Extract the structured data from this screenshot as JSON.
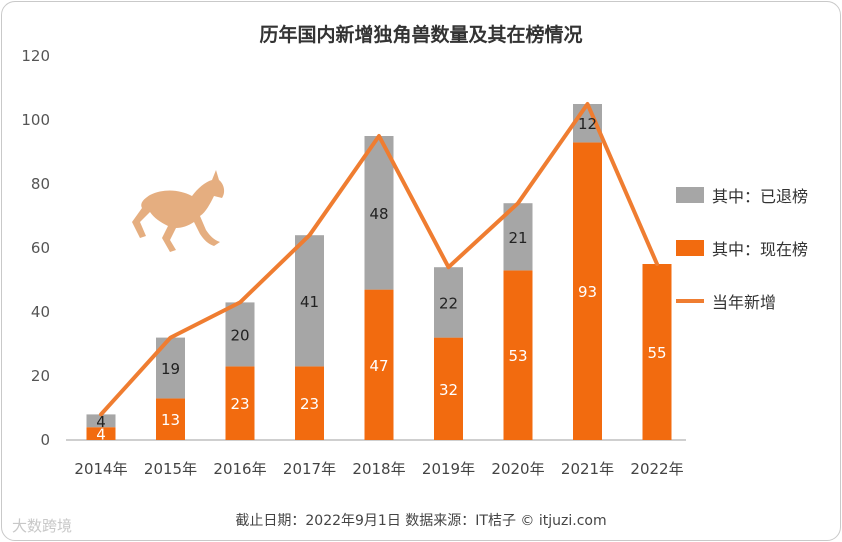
{
  "chart_data": {
    "type": "bar",
    "stacked": true,
    "title": "历年国内新增独角兽数量及其在榜情况",
    "categories": [
      "2014年",
      "2015年",
      "2016年",
      "2017年",
      "2018年",
      "2019年",
      "2020年",
      "2021年",
      "2022年"
    ],
    "series": [
      {
        "name": "其中：现在榜",
        "kind": "bar",
        "color": "#f26b0f",
        "label_color": "#ffffff",
        "values": [
          4,
          13,
          23,
          23,
          47,
          32,
          53,
          93,
          55
        ]
      },
      {
        "name": "其中：已退榜",
        "kind": "bar",
        "color": "#a6a6a6",
        "label_color": "#222222",
        "values": [
          4,
          19,
          20,
          41,
          48,
          22,
          21,
          12,
          0
        ]
      },
      {
        "name": "当年新增",
        "kind": "line",
        "color": "#ef7d31",
        "values": [
          8,
          32,
          43,
          64,
          95,
          54,
          74,
          105,
          55
        ]
      }
    ],
    "y_ticks": [
      0,
      20,
      40,
      60,
      80,
      100,
      120
    ],
    "ylim": [
      0,
      120
    ],
    "xlabel": "",
    "ylabel": "",
    "legend_position": "right",
    "grid": false
  },
  "footer": "截止日期：2022年9月1日   数据来源：IT桔子 © itjuzi.com",
  "watermark": "大数跨境"
}
